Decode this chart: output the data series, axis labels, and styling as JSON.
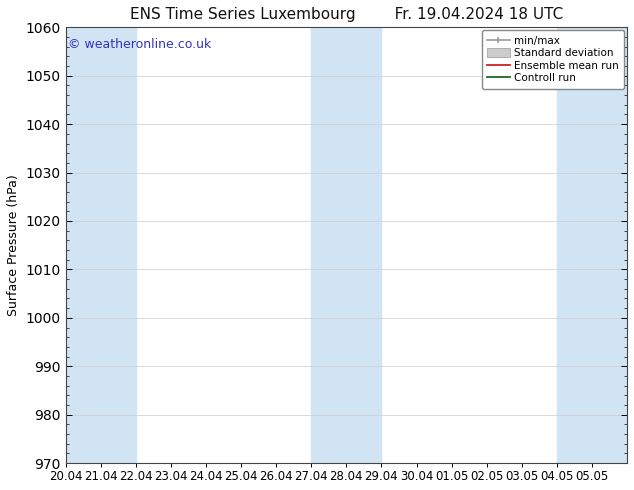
{
  "title_left": "ENS Time Series Luxembourg",
  "title_right": "Fr. 19.04.2024 18 UTC",
  "ylabel": "Surface Pressure (hPa)",
  "ylim": [
    970,
    1060
  ],
  "yticks": [
    970,
    980,
    990,
    1000,
    1010,
    1020,
    1030,
    1040,
    1050,
    1060
  ],
  "xtick_labels": [
    "20.04",
    "21.04",
    "22.04",
    "23.04",
    "24.04",
    "25.04",
    "26.04",
    "27.04",
    "28.04",
    "29.04",
    "30.04",
    "01.05",
    "02.05",
    "03.05",
    "04.05",
    "05.05"
  ],
  "num_days": 16,
  "watermark": "© weatheronline.co.uk",
  "watermark_color": "#3333bb",
  "bg_color": "#ffffff",
  "plot_bg_color": "#ffffff",
  "shaded_color": "#d0e4f4",
  "shaded_day_offsets": [
    0,
    1,
    7,
    8,
    14,
    15
  ],
  "legend_entries": [
    {
      "label": "min/max",
      "color": "#999999",
      "style": "minmax"
    },
    {
      "label": "Standard deviation",
      "color": "#bbbbbb",
      "style": "bar"
    },
    {
      "label": "Ensemble mean run",
      "color": "#cc2222",
      "style": "line"
    },
    {
      "label": "Controll run",
      "color": "#226622",
      "style": "line"
    }
  ],
  "title_fontsize": 11,
  "label_fontsize": 9,
  "tick_fontsize": 8.5,
  "watermark_fontsize": 9
}
